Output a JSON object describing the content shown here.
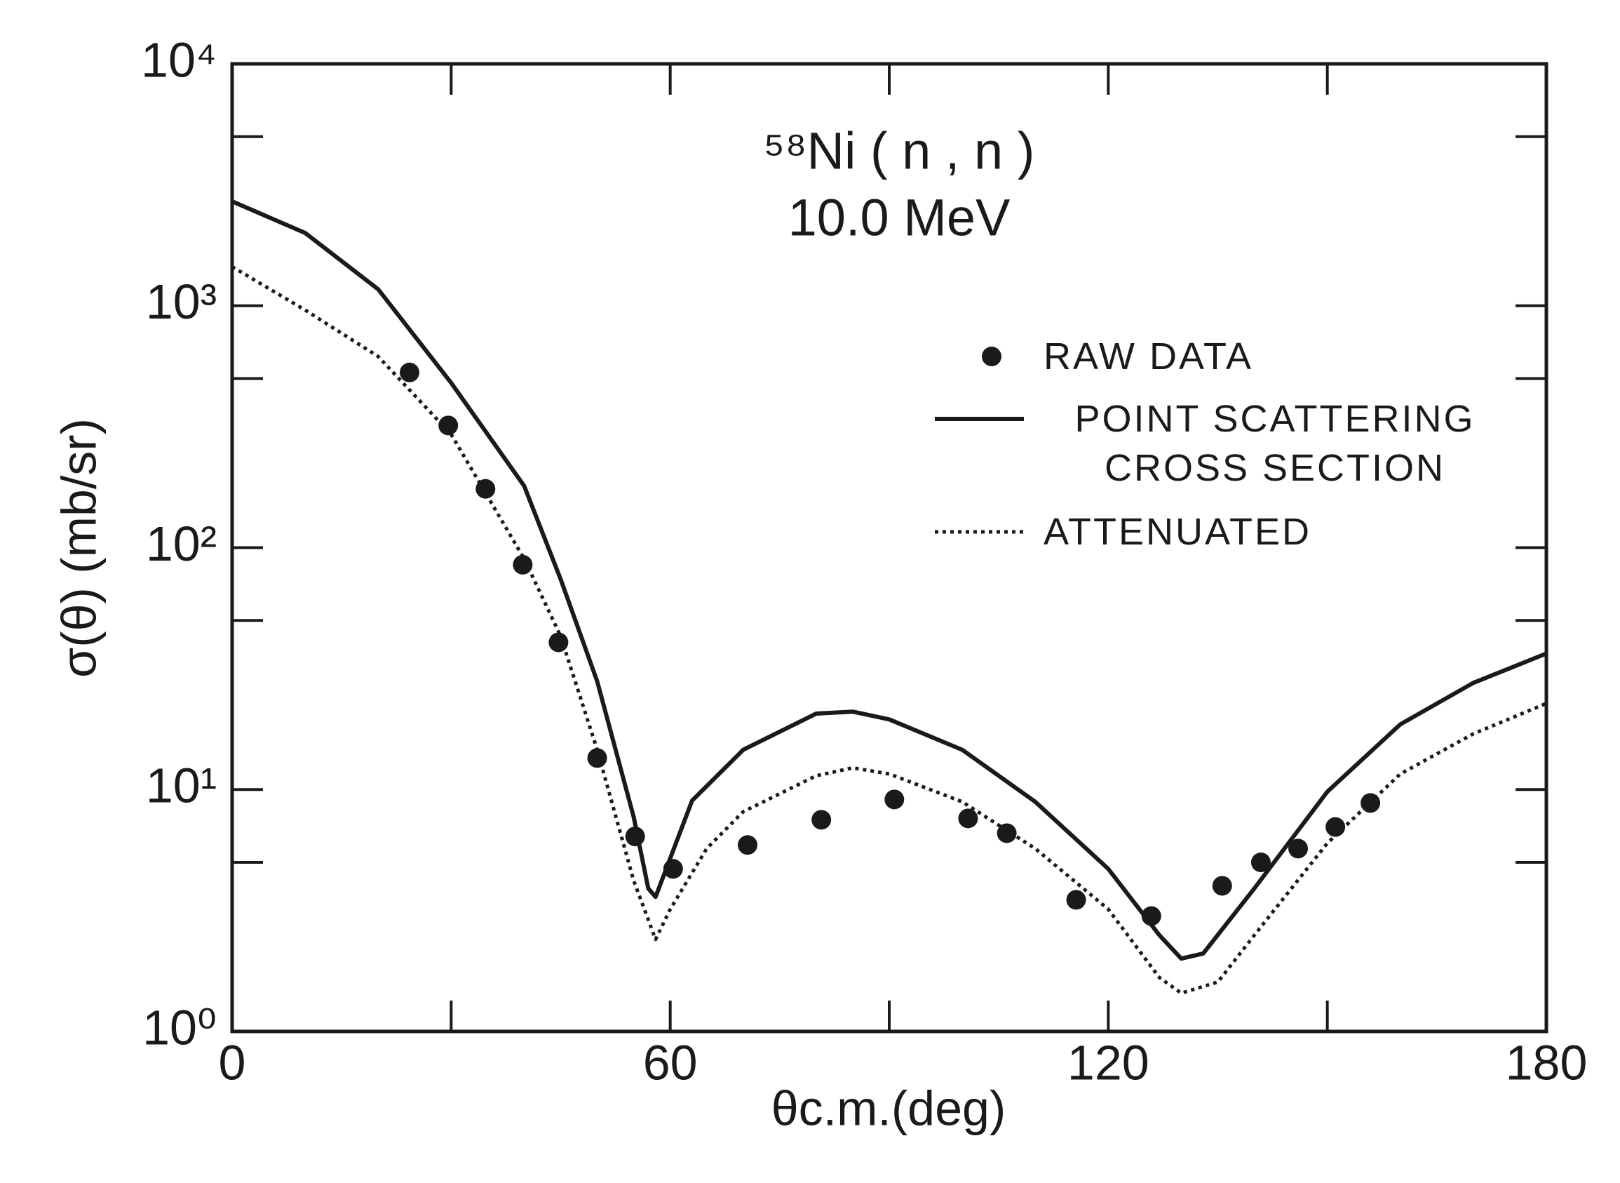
{
  "chart_data": {
    "type": "line",
    "annotation": [
      "⁵⁸Ni ( n , n )",
      "10.0 MeV"
    ],
    "x_label": "θc.m.(deg)",
    "y_label": "σ(θ) (mb/sr)",
    "yscale": "log",
    "xlim": [
      0,
      180
    ],
    "xticks": [
      0,
      60,
      120,
      180
    ],
    "xminorticks": [
      30,
      90,
      150
    ],
    "ylim": [
      1,
      10000
    ],
    "yticks": [
      {
        "value": 1,
        "label": "10⁰"
      },
      {
        "value": 10,
        "label": "10¹"
      },
      {
        "value": 100,
        "label": "10²"
      },
      {
        "value": 1000,
        "label": "10³"
      },
      {
        "value": 10000,
        "label": "10⁴"
      }
    ],
    "yminorticks": [
      5,
      50,
      500,
      5000
    ],
    "legend": "upper right",
    "series": [
      {
        "name": "RAW DATA",
        "type": "scatter",
        "color": "#1a1a1a",
        "x": [
          24.3,
          29.6,
          34.7,
          39.8,
          44.7,
          50.0,
          55.2,
          60.4,
          70.6,
          80.7,
          90.7,
          100.8,
          106.1,
          115.6,
          125.9,
          135.6,
          140.9,
          146.0,
          151.1,
          155.9
        ],
        "values": [
          530,
          320,
          175,
          85,
          40.6,
          13.5,
          6.4,
          4.7,
          5.9,
          7.5,
          9.1,
          7.6,
          6.6,
          3.5,
          3.0,
          4.0,
          5.0,
          5.7,
          7.0,
          8.8
        ]
      },
      {
        "name": "POINT SCATTERING CROSS SECTION",
        "type": "line",
        "style": "solid",
        "color": "#1a1a1a",
        "x": [
          0,
          10,
          20,
          30,
          40,
          45,
          50,
          55,
          57,
          58,
          60,
          63,
          70,
          80,
          85,
          90,
          100,
          110,
          120,
          127,
          130,
          133,
          140,
          150,
          160,
          170,
          180
        ],
        "values": [
          2700,
          2000,
          1170,
          480,
          180,
          74,
          28,
          7.7,
          3.9,
          3.6,
          5.2,
          9,
          14.6,
          20.6,
          21,
          19.5,
          14.6,
          8.9,
          4.7,
          2.5,
          2.0,
          2.1,
          3.9,
          9.8,
          18.6,
          27.6,
          36.5
        ]
      },
      {
        "name": "ATTENUATED",
        "type": "line",
        "style": "dotted",
        "color": "#1a1a1a",
        "x": [
          0,
          10,
          20,
          30,
          40,
          45,
          50,
          55,
          58,
          60,
          65,
          70,
          80,
          85,
          90,
          100,
          110,
          120,
          127,
          130,
          135,
          140,
          150,
          160,
          170,
          180
        ],
        "values": [
          1450,
          960,
          617,
          294,
          90,
          43,
          14.6,
          4.2,
          2.4,
          3.2,
          5.7,
          8.1,
          11.4,
          12.3,
          11.6,
          8.9,
          5.7,
          3.2,
          1.67,
          1.44,
          1.6,
          2.5,
          6.0,
          11.6,
          17,
          22.7
        ]
      }
    ]
  }
}
